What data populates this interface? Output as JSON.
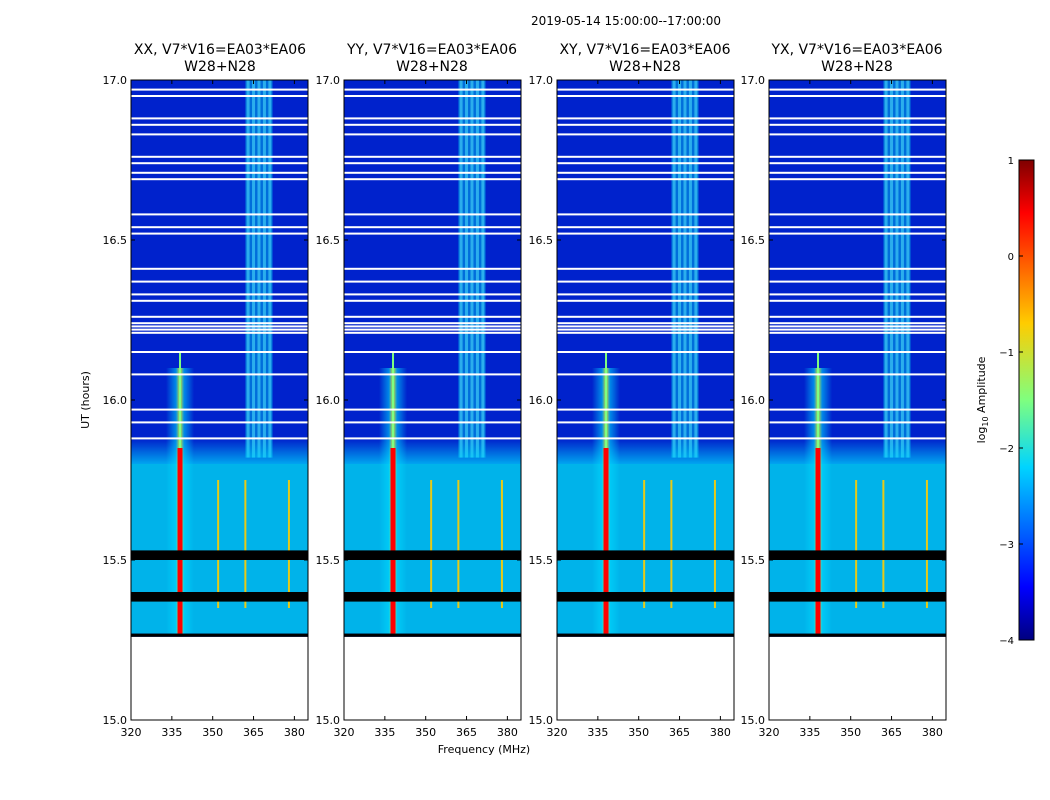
{
  "suptitle": "2019-05-14  15:00:00--17:00:00",
  "panels": [
    {
      "title_line1": "XX, V7*V16=EA03*EA06",
      "title_line2": "W28+N28"
    },
    {
      "title_line1": "YY, V7*V16=EA03*EA06",
      "title_line2": "W28+N28"
    },
    {
      "title_line1": "XY, V7*V16=EA03*EA06",
      "title_line2": "W28+N28"
    },
    {
      "title_line1": "YX, V7*V16=EA03*EA06",
      "title_line2": "W28+N28"
    }
  ],
  "colors": {
    "low_signal": "#0022cc",
    "mid_signal": "#00ccee",
    "high_signal": "#ff0000",
    "flagged": "#000000",
    "no_data": "#ffffff"
  },
  "chart_data": {
    "type": "heatmap",
    "title": "2019-05-14  15:00:00--17:00:00",
    "xlabel": "Frequency (MHz)",
    "ylabel": "UT (hours)",
    "xlim": [
      320,
      385
    ],
    "ylim": [
      15.0,
      17.0
    ],
    "xticks": [
      320,
      335,
      350,
      365,
      380
    ],
    "yticks": [
      15.0,
      15.5,
      16.0,
      16.5,
      17.0
    ],
    "ytick_labels": [
      "15.0",
      "15.5",
      "16.0",
      "16.5",
      "17.0"
    ],
    "colorbar": {
      "label": "log10 Amplitude",
      "label_main": "log",
      "label_sub": "10",
      "label_rest": " Amplitude",
      "range": [
        -4,
        1
      ],
      "ticks": [
        1,
        0,
        -1,
        -2,
        -3,
        -4
      ],
      "tick_labels": [
        "1",
        "0",
        "−1",
        "−2",
        "−3",
        "−4"
      ]
    },
    "polarizations": [
      "XX",
      "YY",
      "XY",
      "YX"
    ],
    "baseline": "V7*V16=EA03*EA06",
    "station": "W28+N28",
    "data_start_ut": 15.26,
    "flagged_bands_ut": [
      [
        15.5,
        15.53
      ],
      [
        15.37,
        15.4
      ],
      [
        15.26,
        15.27
      ]
    ],
    "strong_rfi_freq_mhz": 338,
    "weak_rfi_freqs_mhz": [
      352,
      362,
      378
    ],
    "noisy_band_mhz": [
      362,
      372
    ],
    "bright_period_ut": [
      15.27,
      15.8
    ],
    "data_gaps_ut": [
      16.21,
      16.22,
      16.23,
      16.24,
      16.26,
      16.31,
      16.33,
      16.37,
      16.41,
      16.52,
      16.54,
      16.58,
      16.69,
      16.71,
      16.74,
      16.76,
      16.83,
      16.86,
      16.88,
      16.95,
      16.97,
      16.15,
      16.08,
      15.97,
      15.93,
      15.88
    ]
  }
}
